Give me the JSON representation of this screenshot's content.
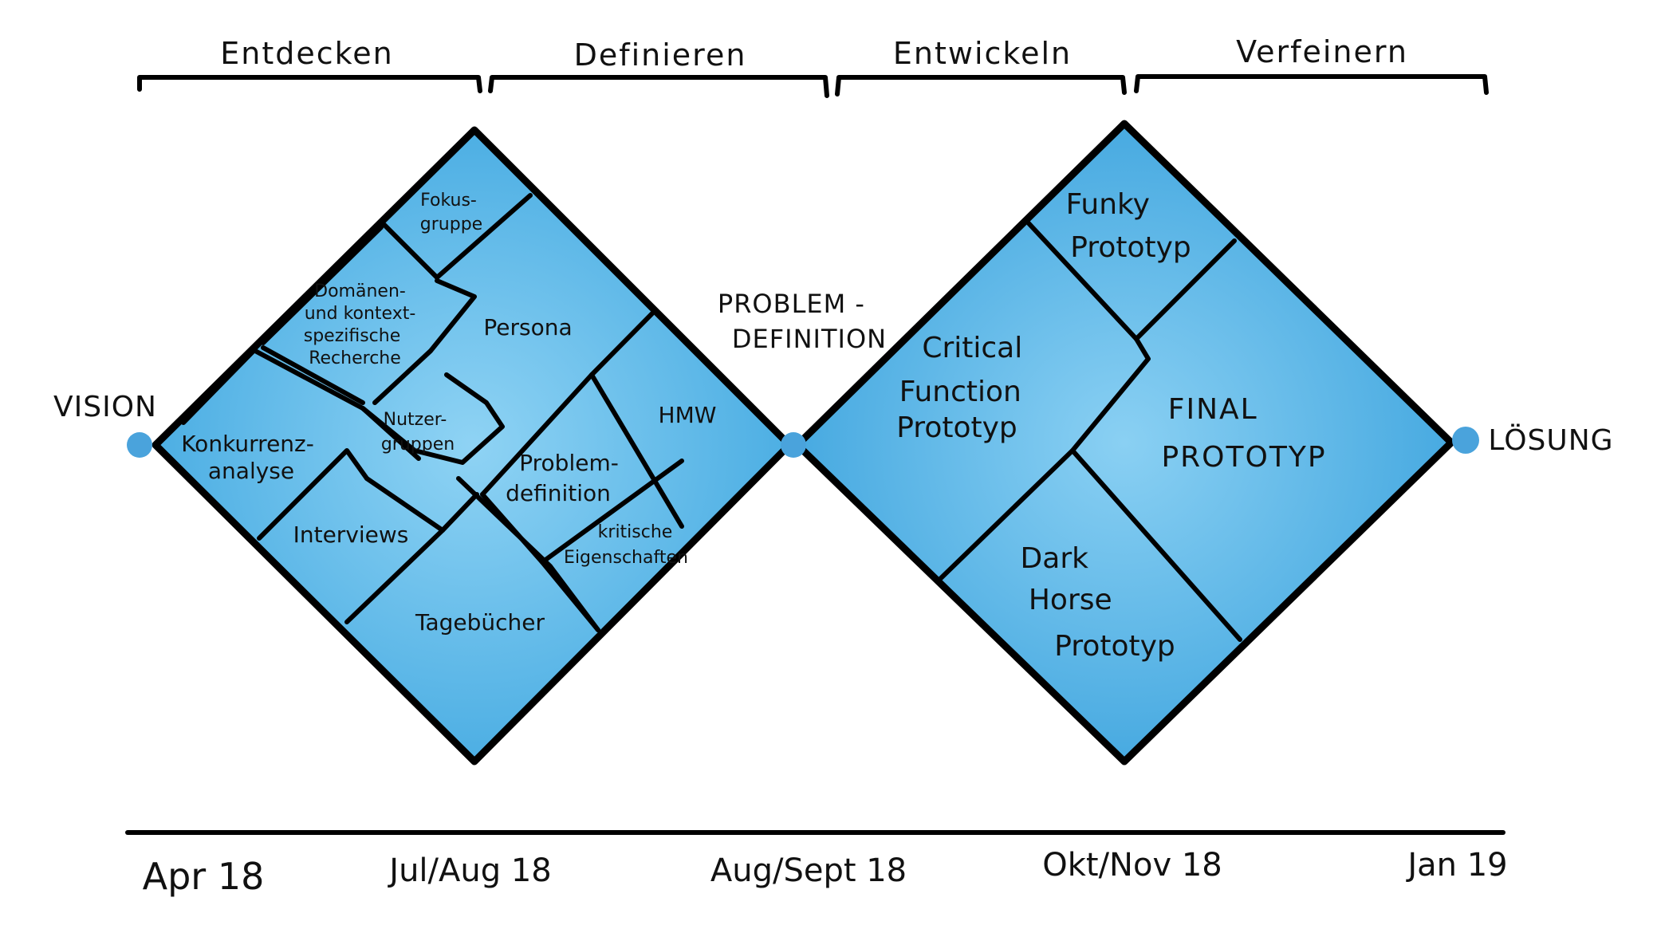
{
  "phases": [
    "Entdecken",
    "Definieren",
    "Entwickeln",
    "Verfeinern"
  ],
  "start_label": "Vision",
  "mid_label_line1": "Problem -",
  "mid_label_line2": "Definition",
  "end_label": "Lösung",
  "timeline": [
    "Apr 18",
    "Jul/Aug 18",
    "Aug/Sept 18",
    "Okt/Nov 18",
    "Jan 19"
  ],
  "first_diamond": {
    "fokusgruppe": [
      "Fokus-",
      "gruppe"
    ],
    "recherche": [
      "Domänen-",
      "und kontext-",
      "spezifische",
      "Recherche"
    ],
    "persona": "Persona",
    "konkurrenzanalyse": [
      "Konkurrenz-",
      "analyse"
    ],
    "nutzergruppen": [
      "Nutzer-",
      "gruppen"
    ],
    "hmw": "HMW",
    "problemdefinition": [
      "Problem-",
      "definition"
    ],
    "interviews": "Interviews",
    "eigenschaften": [
      "kritische",
      "Eigenschaften"
    ],
    "tagebuecher": "Tagebücher"
  },
  "second_diamond": {
    "funky": [
      "Funky",
      "Prototyp"
    ],
    "critical": [
      "Critical",
      "Function",
      "Prototyp"
    ],
    "final": [
      "Final",
      "Prototyp"
    ],
    "dark_horse": [
      "Dark",
      "Horse",
      "Prototyp"
    ]
  },
  "colors": {
    "fill_light": "#8fd3f4",
    "fill_dark": "#3fa7e0",
    "dot": "#4aa3dc",
    "stroke": "#000000"
  }
}
